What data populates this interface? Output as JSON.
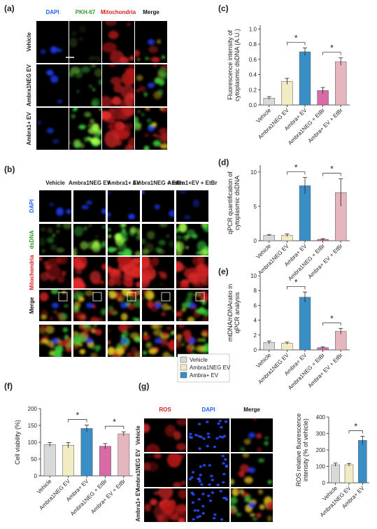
{
  "panel_labels": [
    "(a)",
    "(b)",
    "(c)",
    "(d)",
    "(e)",
    "(f)",
    "(g)"
  ],
  "figure_a": {
    "columns": [
      "DAPI",
      "PKH-67",
      "Mitochondria",
      "Merge"
    ],
    "rows": [
      "Vehicle",
      "Ambra1NEG EV",
      "Ambra1+ EV"
    ]
  },
  "figure_b": {
    "columns": [
      "Vehicle",
      "Ambra1NEG EV",
      "Ambra1+ EV",
      "Ambra1NEG + EtBr",
      "Ambra1+EV + EtBr"
    ],
    "rows": [
      "DAPI",
      "dsDNA",
      "Mitochondria",
      "Merge"
    ]
  },
  "figure_g": {
    "columns": [
      "ROS",
      "DAPI",
      "Merge"
    ],
    "rows": [
      "Vehicle",
      "Ambra1NEG EV",
      "Ambra1+ EV"
    ]
  },
  "chart_data": [
    {
      "type": "bar",
      "ylabel": [
        "Fluorescence intensity of",
        "cytoplasmic dsDNA (A.U.)"
      ],
      "categories": [
        "Vehicle",
        "Ambra1NEG EV",
        "Ambra+ EV",
        "Ambra1NEG + EtBr",
        "Ambra+ EV + EtBr"
      ],
      "values": [
        0.09,
        0.31,
        0.7,
        0.19,
        0.57
      ],
      "errors": [
        0.02,
        0.04,
        0.05,
        0.04,
        0.05
      ],
      "colors": [
        "#d9d9d9",
        "#f2ecc4",
        "#3a8ec6",
        "#d86aa6",
        "#e6b6bf"
      ],
      "ylim": [
        0,
        1.05
      ],
      "yticks": [
        {
          "value": 0,
          "label": "0.0"
        },
        0.2,
        0.4,
        0.6,
        0.8,
        {
          "value": 1,
          "label": "1.0"
        }
      ],
      "significance": [
        {
          "label": "*",
          "pair": [
            1,
            2
          ]
        },
        {
          "label": "*",
          "pair": [
            3,
            4
          ]
        }
      ]
    },
    {
      "type": "bar",
      "ylabel": [
        "qPCR quantification of",
        "cytoplasmic dsDNA"
      ],
      "categories": [
        "Vehicle",
        "Ambra1NEG EV",
        "Ambra+ EV",
        "Ambra1NEG + EtBr",
        "Ambra+ EV + EtBr"
      ],
      "values": [
        0.8,
        0.8,
        8.0,
        0.2,
        7.0
      ],
      "errors": [
        0.1,
        0.2,
        1.2,
        0.1,
        2.0
      ],
      "colors": [
        "#d9d9d9",
        "#f2ecc4",
        "#3a8ec6",
        "#d86aa6",
        "#e6b6bf"
      ],
      "ylim": [
        0,
        11
      ],
      "yticks": [
        0,
        5,
        10
      ],
      "significance": [
        {
          "label": "*",
          "pair": [
            1,
            2
          ]
        },
        {
          "label": "*",
          "pair": [
            3,
            4
          ]
        }
      ]
    },
    {
      "type": "bar",
      "ylabel": [
        "mtDNA/nDNAratio in",
        "qPCR analysis"
      ],
      "categories": [
        "Vehicle",
        "Ambra1NEG EV",
        "Ambra+ EV",
        "Ambra1NEG + EtBr",
        "Ambra+ EV + EtBr"
      ],
      "values": [
        1.0,
        0.9,
        7.1,
        0.3,
        2.5
      ],
      "errors": [
        0.2,
        0.15,
        0.7,
        0.1,
        0.4
      ],
      "colors": [
        "#d9d9d9",
        "#f2ecc4",
        "#3a8ec6",
        "#d86aa6",
        "#e6b6bf"
      ],
      "ylim": [
        0,
        10
      ],
      "yticks": [
        0,
        2,
        4,
        6,
        8,
        10
      ],
      "significance": [
        {
          "label": "*",
          "pair": [
            1,
            2
          ]
        },
        {
          "label": "*",
          "pair": [
            3,
            4
          ]
        }
      ],
      "legend": [
        "Vehicle",
        "Ambra1NEG EV",
        "Ambra+ EV"
      ]
    },
    {
      "type": "bar",
      "ylabel": [
        "Cell viability (%)"
      ],
      "categories": [
        "Vehicle",
        "Ambra1NEG EV",
        "Ambra+ EV",
        "Ambra1NEG + EtBr",
        "Ambra+ EV + EtBr"
      ],
      "values": [
        93,
        91,
        141,
        88,
        125
      ],
      "errors": [
        6,
        8,
        10,
        8,
        6
      ],
      "colors": [
        "#d9d9d9",
        "#f2ecc4",
        "#3a8ec6",
        "#d86aa6",
        "#e6b6bf"
      ],
      "ylim": [
        0,
        200
      ],
      "yticks": [
        0,
        50,
        100,
        150,
        200
      ],
      "significance": [
        {
          "label": "*",
          "pair": [
            1,
            2
          ]
        },
        {
          "label": "*",
          "pair": [
            3,
            4
          ]
        }
      ]
    },
    {
      "type": "bar",
      "ylabel": [
        "ROS relative fluorescence",
        "intensity (% of vehicle)"
      ],
      "categories": [
        "Vehicle",
        "Ambra1NEG EV",
        "Ambra+ EV"
      ],
      "values": [
        110,
        110,
        258
      ],
      "errors": [
        10,
        8,
        25
      ],
      "colors": [
        "#d9d9d9",
        "#f2ecc4",
        "#3a8ec6"
      ],
      "ylim": [
        0,
        400
      ],
      "yticks": [
        0,
        100,
        200,
        300,
        400
      ],
      "significance": [
        {
          "label": "*",
          "pair": [
            1,
            2
          ]
        }
      ]
    }
  ]
}
